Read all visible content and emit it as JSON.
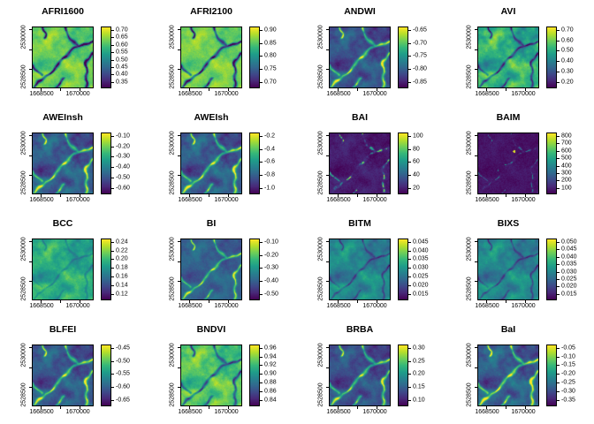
{
  "figure": {
    "background": "#ffffff",
    "kind": "R raster plot grid of spectral indices"
  },
  "chart_data": {
    "type": "heatmap",
    "layout": {
      "rows": 4,
      "cols": 4,
      "grid": "on-map none",
      "legend_position": "right-of-each-panel"
    },
    "colormap": "viridis",
    "colormap_hex": [
      "#440154",
      "#482878",
      "#3e4989",
      "#31688e",
      "#26828e",
      "#1f9e89",
      "#35b779",
      "#6ece58",
      "#b5de2b",
      "#fde725"
    ],
    "x_tick_labels": [
      "1668500",
      "1670000"
    ],
    "y_tick_labels": [
      "2530000",
      "2528500"
    ],
    "panels": [
      {
        "title": "AFRI1600",
        "legend_labels": [
          "0.70",
          "0.65",
          "0.60",
          "0.55",
          "0.50",
          "0.45",
          "0.40",
          "0.35"
        ],
        "appearance": {
          "base": 0.76,
          "amp": 0.18,
          "river": -0.9,
          "rw": 0.02
        }
      },
      {
        "title": "AFRI2100",
        "legend_labels": [
          "0.90",
          "0.85",
          "0.80",
          "0.75",
          "0.70"
        ],
        "appearance": {
          "base": 0.78,
          "amp": 0.15,
          "river": -0.8,
          "rw": 0.02
        }
      },
      {
        "title": "ANDWI",
        "legend_labels": [
          "-0.65",
          "-0.70",
          "-0.75",
          "-0.80",
          "-0.85"
        ],
        "appearance": {
          "base": 0.24,
          "amp": 0.2,
          "river": 0.62,
          "rw": 0.022
        }
      },
      {
        "title": "AVI",
        "legend_labels": [
          "0.70",
          "0.60",
          "0.50",
          "0.40",
          "0.30",
          "0.20"
        ],
        "appearance": {
          "base": 0.62,
          "amp": 0.3,
          "river": -0.55,
          "rw": 0.018
        }
      },
      {
        "title": "AWEInsh",
        "legend_labels": [
          "-0.10",
          "-0.20",
          "-0.30",
          "-0.40",
          "-0.50",
          "-0.60"
        ],
        "appearance": {
          "base": 0.27,
          "amp": 0.22,
          "river": 0.6,
          "rw": 0.022
        }
      },
      {
        "title": "AWEIsh",
        "legend_labels": [
          "-0.2",
          "-0.4",
          "-0.6",
          "-0.8",
          "-1.0"
        ],
        "appearance": {
          "base": 0.27,
          "amp": 0.22,
          "river": 0.6,
          "rw": 0.022
        }
      },
      {
        "title": "BAI",
        "legend_labels": [
          "100",
          "80",
          "60",
          "40",
          "20"
        ],
        "appearance": {
          "base": 0.07,
          "amp": 0.08,
          "river": 0.78,
          "rw": 0.012,
          "gate": true
        }
      },
      {
        "title": "BAIM",
        "legend_labels": [
          "800",
          "700",
          "600",
          "500",
          "400",
          "300",
          "200",
          "100"
        ],
        "appearance": {
          "base": 0.05,
          "amp": 0.04,
          "river": 0.45,
          "rw": 0.007,
          "gate": true,
          "spots": [
            [
              0.6,
              0.3,
              0.02,
              0.95
            ],
            [
              0.46,
              0.52,
              0.012,
              0.55
            ],
            [
              0.33,
              0.62,
              0.01,
              0.45
            ]
          ]
        }
      },
      {
        "title": "BCC",
        "legend_labels": [
          "0.24",
          "0.22",
          "0.20",
          "0.18",
          "0.16",
          "0.14",
          "0.12"
        ],
        "appearance": {
          "base": 0.6,
          "amp": 0.22,
          "river": -0.18,
          "rw": 0.016
        }
      },
      {
        "title": "BI",
        "legend_labels": [
          "-0.10",
          "-0.20",
          "-0.30",
          "-0.40",
          "-0.50"
        ],
        "appearance": {
          "base": 0.3,
          "amp": 0.14,
          "river": 0.55,
          "rw": 0.018
        }
      },
      {
        "title": "BITM",
        "legend_labels": [
          "0.045",
          "0.040",
          "0.035",
          "0.030",
          "0.025",
          "0.020",
          "0.015"
        ],
        "appearance": {
          "base": 0.45,
          "amp": 0.22,
          "river": -0.3,
          "rw": 0.016
        }
      },
      {
        "title": "BIXS",
        "legend_labels": [
          "0.050",
          "0.045",
          "0.040",
          "0.035",
          "0.030",
          "0.025",
          "0.020",
          "0.015"
        ],
        "appearance": {
          "base": 0.45,
          "amp": 0.22,
          "river": -0.3,
          "rw": 0.016
        }
      },
      {
        "title": "BLFEI",
        "legend_labels": [
          "-0.45",
          "-0.50",
          "-0.55",
          "-0.60",
          "-0.65"
        ],
        "appearance": {
          "base": 0.26,
          "amp": 0.2,
          "river": 0.6,
          "rw": 0.022
        }
      },
      {
        "title": "BNDVI",
        "legend_labels": [
          "0.96",
          "0.94",
          "0.92",
          "0.90",
          "0.88",
          "0.86",
          "0.84"
        ],
        "appearance": {
          "base": 0.72,
          "amp": 0.22,
          "river": -0.55,
          "rw": 0.02
        }
      },
      {
        "title": "BRBA",
        "legend_labels": [
          "0.30",
          "0.25",
          "0.20",
          "0.15",
          "0.10"
        ],
        "appearance": {
          "base": 0.23,
          "amp": 0.18,
          "river": 0.6,
          "rw": 0.022
        }
      },
      {
        "title": "BaI",
        "legend_labels": [
          "-0.05",
          "-0.10",
          "-0.15",
          "-0.20",
          "-0.25",
          "-0.30",
          "-0.35"
        ],
        "appearance": {
          "base": 0.28,
          "amp": 0.22,
          "river": 0.66,
          "rw": 0.022
        }
      }
    ]
  }
}
